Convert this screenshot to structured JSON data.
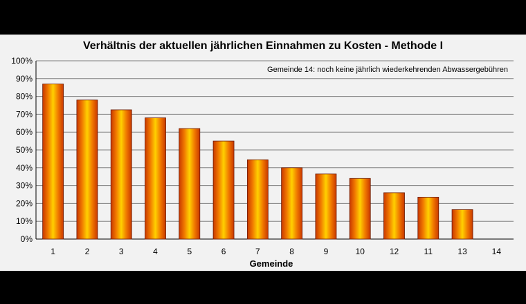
{
  "chart_data": {
    "type": "bar",
    "title": "Verhältnis der aktuellen jährlichen Einnahmen zu Kosten - Methode I",
    "annotation": "Gemeinde 14: noch keine jährlich wiederkehrenden  Abwassergebühren",
    "xlabel": "Gemeinde",
    "ylabel": "",
    "categories": [
      "1",
      "2",
      "3",
      "4",
      "5",
      "6",
      "7",
      "8",
      "9",
      "10",
      "12",
      "11",
      "13",
      "14"
    ],
    "values": [
      87,
      78,
      72.5,
      68,
      62,
      55,
      44.5,
      40,
      36.5,
      34,
      26,
      23.5,
      16.5,
      0
    ],
    "ylim": [
      0,
      100
    ],
    "yticks": [
      "0%",
      "10%",
      "20%",
      "30%",
      "40%",
      "50%",
      "60%",
      "70%",
      "80%",
      "90%",
      "100%"
    ],
    "grid": true,
    "colors": {
      "bar_edge": "#e06000",
      "bar_center": "#ffd000",
      "bar_dark": "#c03000",
      "grid": "#7f7f7f",
      "background": "#f2f2f2"
    }
  }
}
